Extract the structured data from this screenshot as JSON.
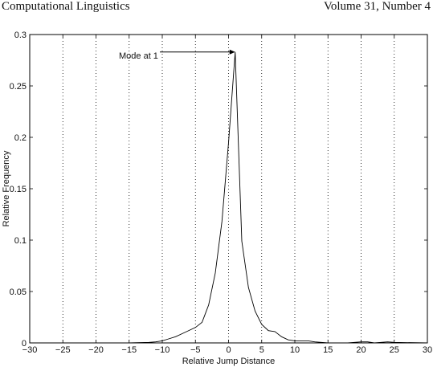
{
  "header": {
    "left": "Computational Linguistics",
    "right": "Volume 31, Number 4"
  },
  "chart_data": {
    "type": "line",
    "title": "",
    "xlabel": "Relative Jump Distance",
    "ylabel": "Relative Frequency",
    "xlim": [
      -30,
      30
    ],
    "ylim": [
      0,
      0.3
    ],
    "xticks": [
      "−30",
      "−25",
      "−20",
      "−15",
      "−10",
      "−5",
      "0",
      "5",
      "10",
      "15",
      "20",
      "25",
      "30"
    ],
    "xtick_values": [
      -30,
      -25,
      -20,
      -15,
      -10,
      -5,
      0,
      5,
      10,
      15,
      20,
      25,
      30
    ],
    "yticks": [
      "0",
      "0.05",
      "0.1",
      "0.15",
      "0.2",
      "0.25",
      "0.3"
    ],
    "ytick_values": [
      0,
      0.05,
      0.1,
      0.15,
      0.2,
      0.25,
      0.3
    ],
    "grid": "vertical-dotted",
    "series": [
      {
        "name": "relative frequency",
        "x": [
          -30,
          -25,
          -20,
          -15,
          -12,
          -11,
          -10,
          -9,
          -8,
          -7,
          -6,
          -5,
          -4,
          -3,
          -2,
          -1,
          0,
          1,
          2,
          3,
          4,
          5,
          6,
          7,
          8,
          9,
          10,
          11,
          12,
          13,
          14,
          15,
          16,
          17,
          18,
          19,
          20,
          21,
          22,
          23,
          24,
          25,
          30
        ],
        "y": [
          0,
          0,
          0,
          0,
          0.0005,
          0.001,
          0.002,
          0.004,
          0.006,
          0.009,
          0.012,
          0.015,
          0.02,
          0.037,
          0.068,
          0.118,
          0.195,
          0.283,
          0.099,
          0.054,
          0.031,
          0.018,
          0.012,
          0.011,
          0.006,
          0.003,
          0.002,
          0.002,
          0.002,
          0.001,
          0.0005,
          0,
          0,
          0,
          0,
          0.0005,
          0.001,
          0.001,
          0,
          0.0005,
          0.001,
          0.0005,
          0
        ]
      }
    ],
    "annotation": {
      "text": "Mode at 1",
      "x": 1,
      "y": 0.283
    }
  }
}
